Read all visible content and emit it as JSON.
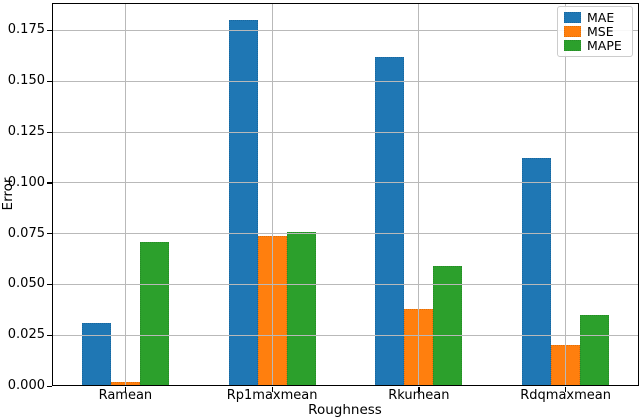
{
  "chart_data": {
    "type": "bar",
    "title": "",
    "xlabel": "Roughness",
    "ylabel": "Error",
    "categories": [
      "Ramean",
      "Rp1maxmean",
      "Rkumean",
      "Rdqmaxmean"
    ],
    "series": [
      {
        "name": "MAE",
        "color": "#1f77b4",
        "edge_color": "#19679e",
        "values": [
          0.031,
          0.18,
          0.162,
          0.112
        ]
      },
      {
        "name": "MSE",
        "color": "#ff7f0e",
        "edge_color": "#e0700a",
        "values": [
          0.002,
          0.074,
          0.038,
          0.02
        ]
      },
      {
        "name": "MAPE",
        "color": "#2ca02c",
        "edge_color": "#268c26",
        "values": [
          0.071,
          0.076,
          0.059,
          0.035
        ]
      }
    ],
    "ylim": [
      0,
      0.1885
    ],
    "yticks": [
      0,
      0.025,
      0.05,
      0.075,
      0.1,
      0.125,
      0.15,
      0.175
    ],
    "ytick_labels": [
      "0.000",
      "0.025",
      "0.050",
      "0.075",
      "0.100",
      "0.125",
      "0.150",
      "0.175"
    ],
    "grid": true,
    "grid_color": "#b9b9b9",
    "legend_position": "upper right",
    "legend_entries": [
      "MAE",
      "MSE",
      "MAPE"
    ],
    "axis_color": "#000000",
    "background_color": "#ffffff"
  }
}
